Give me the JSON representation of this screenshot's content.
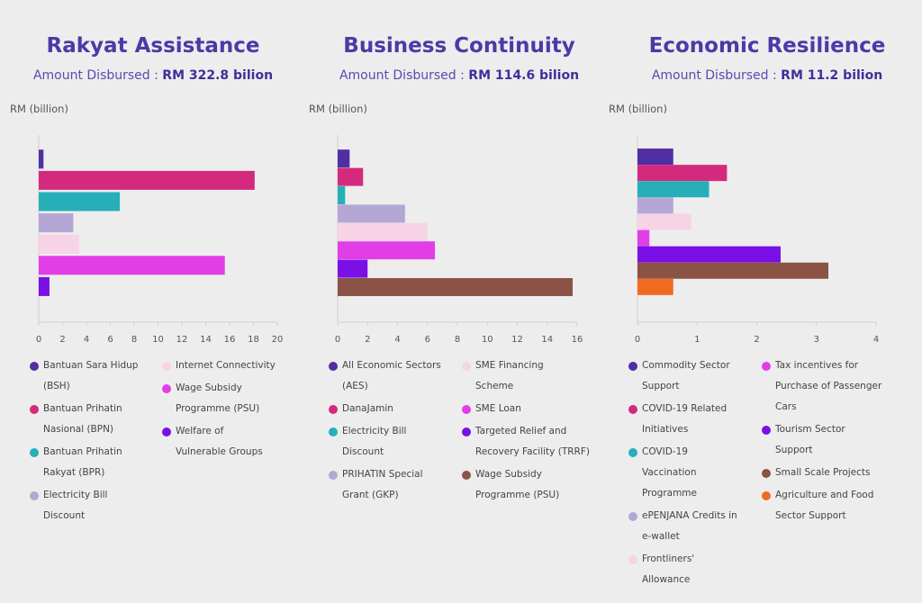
{
  "y_axis_label": "RM (billion)",
  "sub_prefix": "Amount Disbursed : ",
  "chart_data": [
    {
      "type": "bar",
      "orientation": "horizontal",
      "title": "Rakyat Assistance",
      "amount": "RM 322.8 bilion",
      "ylabel": "RM (billion)",
      "xlim": [
        0,
        20
      ],
      "ticks": [
        0,
        2,
        4,
        6,
        8,
        10,
        12,
        14,
        16,
        18,
        20
      ],
      "grid": false,
      "categories": [
        "Bantuan Sara Hidup (BSH)",
        "Bantuan Prihatin Nasional (BPN)",
        "Bantuan Prihatin Rakyat (BPR)",
        "Electricity Bill Discount",
        "Internet Connectivity",
        "Wage Subsidy Programme (PSU)",
        "Welfare of Vulnerable Groups"
      ],
      "values": [
        0.4,
        18.1,
        6.8,
        2.9,
        3.4,
        15.6,
        0.9
      ],
      "colors": [
        "#4f2fa3",
        "#d42a7d",
        "#26afb8",
        "#b4a7d6",
        "#f7d3e6",
        "#e23ee8",
        "#7a0fe6"
      ]
    },
    {
      "type": "bar",
      "orientation": "horizontal",
      "title": "Business Continuity",
      "amount": "RM 114.6 bilion",
      "ylabel": "RM (billion)",
      "xlim": [
        0,
        16
      ],
      "ticks": [
        0,
        2,
        4,
        6,
        8,
        10,
        12,
        14,
        16
      ],
      "grid": false,
      "categories": [
        "All Economic Sectors (AES)",
        "DanaJamin",
        "Electricity Bill Discount",
        "PRIHATIN Special Grant (GKP)",
        "SME Financing Scheme",
        "SME Loan",
        "Targeted Relief and Recovery Facility (TRRF)",
        "Wage Subsidy Programme (PSU)"
      ],
      "values": [
        0.8,
        1.7,
        0.5,
        4.5,
        6.0,
        6.5,
        2.0,
        15.7
      ],
      "colors": [
        "#4f2fa3",
        "#d42a7d",
        "#26afb8",
        "#b4a7d6",
        "#f7d3e6",
        "#e23ee8",
        "#7a0fe6",
        "#8b5346"
      ]
    },
    {
      "type": "bar",
      "orientation": "horizontal",
      "title": "Economic Resilience",
      "amount": "RM 11.2 bilion",
      "ylabel": "RM (billion)",
      "xlim": [
        0,
        4
      ],
      "ticks": [
        0,
        1,
        2,
        3,
        4
      ],
      "grid": false,
      "categories": [
        "Commodity Sector Support",
        "COVID-19 Related Initiatives",
        "COVID-19 Vaccination Programme",
        "ePENJANA Credits in e-wallet",
        "Frontliners' Allowance",
        "Tax incentives for Purchase of Passenger Cars",
        "Tourism Sector Support",
        "Small Scale Projects",
        "Agriculture and Food Sector Support"
      ],
      "values": [
        0.6,
        1.5,
        1.2,
        0.6,
        0.9,
        0.2,
        2.4,
        3.2,
        0.6
      ],
      "colors": [
        "#4f2fa3",
        "#d42a7d",
        "#26afb8",
        "#b4a7d6",
        "#f7d3e6",
        "#e23ee8",
        "#7a0fe6",
        "#8b5346",
        "#f26a21"
      ]
    }
  ],
  "legends": [
    {
      "columns": [
        [
          {
            "lines": [
              "Bantuan Sara Hidup",
              "(BSH)"
            ],
            "color": "#4f2fa3"
          },
          {
            "lines": [
              "Bantuan Prihatin",
              "Nasional (BPN)"
            ],
            "color": "#d42a7d"
          },
          {
            "lines": [
              "Bantuan Prihatin",
              "Rakyat (BPR)"
            ],
            "color": "#26afb8"
          },
          {
            "lines": [
              "Electricity Bill",
              "Discount"
            ],
            "color": "#b4a7d6"
          }
        ],
        [
          {
            "lines": [
              "Internet Connectivity"
            ],
            "color": "#f7d3e6"
          },
          {
            "lines": [
              "Wage Subsidy",
              "Programme (PSU)"
            ],
            "color": "#e23ee8"
          },
          {
            "lines": [
              "Welfare of",
              "Vulnerable Groups"
            ],
            "color": "#7a0fe6"
          }
        ]
      ]
    },
    {
      "columns": [
        [
          {
            "lines": [
              "All Economic Sectors",
              "(AES)"
            ],
            "color": "#4f2fa3"
          },
          {
            "lines": [
              "DanaJamin"
            ],
            "color": "#d42a7d"
          },
          {
            "lines": [
              "Electricity Bill",
              "Discount"
            ],
            "color": "#26afb8"
          },
          {
            "lines": [
              "PRIHATIN Special",
              "Grant (GKP)"
            ],
            "color": "#b4a7d6"
          }
        ],
        [
          {
            "lines": [
              "SME Financing",
              "Scheme"
            ],
            "color": "#f7d3e6"
          },
          {
            "lines": [
              "SME Loan"
            ],
            "color": "#e23ee8"
          },
          {
            "lines": [
              "Targeted Relief and",
              "Recovery Facility (TRRF)"
            ],
            "color": "#7a0fe6"
          },
          {
            "lines": [
              "Wage Subsidy",
              "Programme (PSU)"
            ],
            "color": "#8b5346"
          }
        ]
      ]
    },
    {
      "columns": [
        [
          {
            "lines": [
              "Commodity Sector",
              "Support"
            ],
            "color": "#4f2fa3"
          },
          {
            "lines": [
              "COVID-19 Related",
              "Initiatives"
            ],
            "color": "#d42a7d"
          },
          {
            "lines": [
              "COVID-19",
              "Vaccination",
              "Programme"
            ],
            "color": "#26afb8"
          },
          {
            "lines": [
              "ePENJANA Credits in",
              "e-wallet"
            ],
            "color": "#b4a7d6"
          },
          {
            "lines": [
              "Frontliners'",
              "Allowance"
            ],
            "color": "#f7d3e6"
          }
        ],
        [
          {
            "lines": [
              "Tax incentives for",
              "Purchase of Passenger",
              "Cars"
            ],
            "color": "#e23ee8"
          },
          {
            "lines": [
              "Tourism Sector",
              "Support"
            ],
            "color": "#7a0fe6"
          },
          {
            "lines": [
              "Small Scale Projects"
            ],
            "color": "#8b5346"
          },
          {
            "lines": [
              "Agriculture and Food",
              "Sector Support"
            ],
            "color": "#f26a21"
          }
        ]
      ]
    }
  ]
}
